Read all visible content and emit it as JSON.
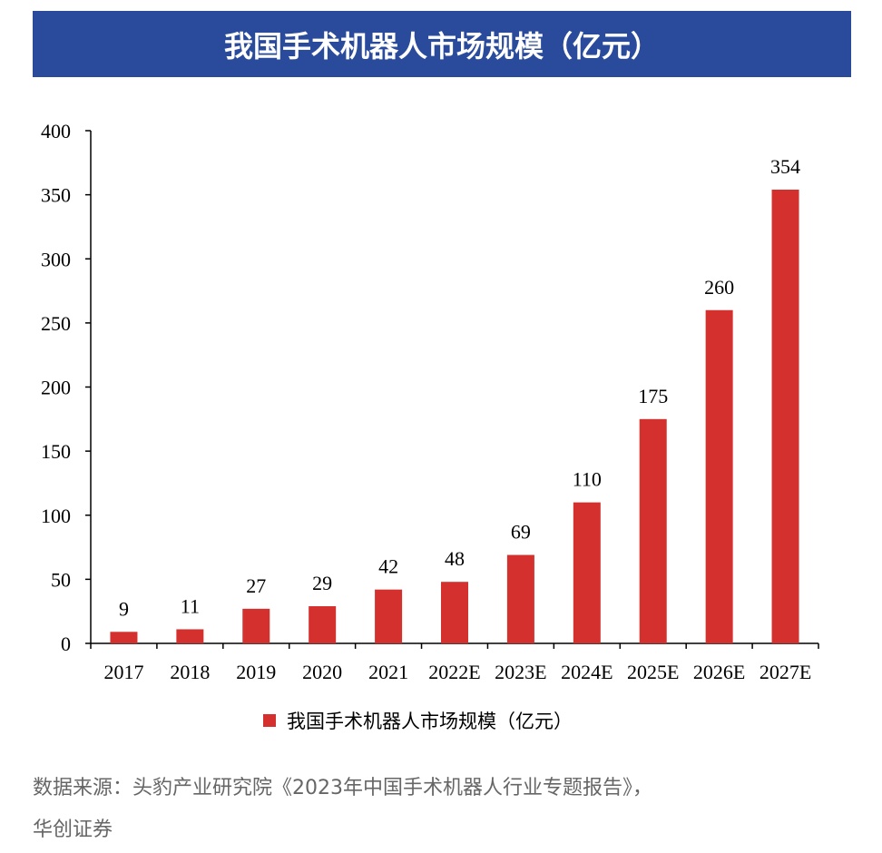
{
  "header": {
    "title": "我国手术机器人市场规模（亿元）"
  },
  "colors": {
    "header_bg": "#2a4b9b",
    "bar": "#d4302e",
    "axis": "#000000",
    "source_text": "#666666"
  },
  "chart_data": {
    "type": "bar",
    "title": "我国手术机器人市场规模（亿元）",
    "categories": [
      "2017",
      "2018",
      "2019",
      "2020",
      "2021",
      "2022E",
      "2023E",
      "2024E",
      "2025E",
      "2026E",
      "2027E"
    ],
    "series": [
      {
        "name": "我国手术机器人市场规模（亿元）",
        "values": [
          9,
          11,
          27,
          29,
          42,
          48,
          69,
          110,
          175,
          260,
          354
        ]
      }
    ],
    "ylim": [
      0,
      400
    ],
    "yticks": [
      "0",
      "50",
      "100",
      "150",
      "200",
      "250",
      "300",
      "350",
      "400"
    ],
    "grid": false,
    "legend": "bottom-center",
    "data_labels": true
  },
  "legend": {
    "label": "我国手术机器人市场规模（亿元）"
  },
  "source": {
    "line1": "数据来源：头豹产业研究院《2023年中国手术机器人行业专题报告》，",
    "line2": "华创证券"
  }
}
